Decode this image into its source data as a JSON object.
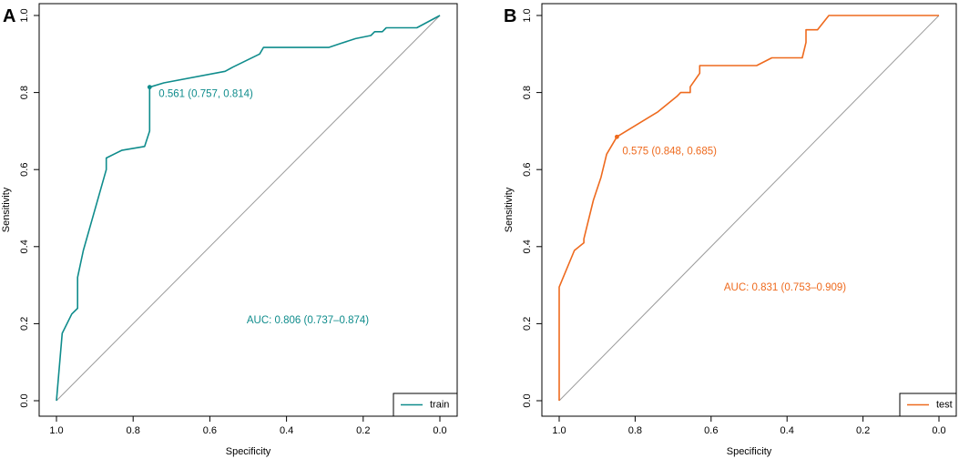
{
  "chart_data": [
    {
      "panel": "A",
      "type": "line",
      "title": "",
      "xlabel": "Specificity",
      "ylabel": "Sensitivity",
      "xlim": [
        1.0,
        0.0
      ],
      "ylim": [
        0.0,
        1.0
      ],
      "x_ticks": [
        "1.0",
        "0.8",
        "0.6",
        "0.4",
        "0.2",
        "0.0"
      ],
      "y_ticks": [
        "0.0",
        "0.2",
        "0.4",
        "0.6",
        "0.8",
        "1.0"
      ],
      "color": "#0f8c8c",
      "series": [
        {
          "name": "train",
          "specificity": [
            1.0,
            0.985,
            0.96,
            0.945,
            0.945,
            0.93,
            0.87,
            0.87,
            0.83,
            0.77,
            0.757,
            0.757,
            0.72,
            0.56,
            0.54,
            0.47,
            0.46,
            0.29,
            0.26,
            0.22,
            0.18,
            0.17,
            0.15,
            0.14,
            0.06,
            0.0
          ],
          "sensitivity": [
            0.0,
            0.175,
            0.225,
            0.24,
            0.32,
            0.39,
            0.6,
            0.63,
            0.65,
            0.66,
            0.7,
            0.814,
            0.825,
            0.855,
            0.866,
            0.9,
            0.917,
            0.917,
            0.927,
            0.94,
            0.948,
            0.958,
            0.958,
            0.968,
            0.968,
            1.0
          ]
        }
      ],
      "threshold_point": {
        "specificity": 0.757,
        "sensitivity": 0.814,
        "label": "0.561 (0.757, 0.814)"
      },
      "auc_text": "AUC: 0.806 (0.737–0.874)",
      "legend": "bottom-right"
    },
    {
      "panel": "B",
      "type": "line",
      "title": "",
      "xlabel": "Specificity",
      "ylabel": "Sensitivity",
      "xlim": [
        1.0,
        0.0
      ],
      "ylim": [
        0.0,
        1.0
      ],
      "x_ticks": [
        "1.0",
        "0.8",
        "0.6",
        "0.4",
        "0.2",
        "0.0"
      ],
      "y_ticks": [
        "0.0",
        "0.2",
        "0.4",
        "0.6",
        "0.8",
        "1.0"
      ],
      "color": "#ee6a1e",
      "series": [
        {
          "name": "test",
          "specificity": [
            1.0,
            1.0,
            0.96,
            0.935,
            0.935,
            0.91,
            0.89,
            0.875,
            0.848,
            0.79,
            0.74,
            0.69,
            0.68,
            0.655,
            0.655,
            0.63,
            0.63,
            0.48,
            0.44,
            0.36,
            0.35,
            0.35,
            0.32,
            0.29,
            0.29,
            0.0
          ],
          "sensitivity": [
            0.0,
            0.295,
            0.39,
            0.41,
            0.42,
            0.52,
            0.58,
            0.64,
            0.685,
            0.72,
            0.75,
            0.79,
            0.8,
            0.8,
            0.815,
            0.85,
            0.87,
            0.87,
            0.89,
            0.89,
            0.93,
            0.963,
            0.963,
            1.0,
            1.0,
            1.0
          ]
        }
      ],
      "threshold_point": {
        "specificity": 0.848,
        "sensitivity": 0.685,
        "label": "0.575 (0.848, 0.685)"
      },
      "auc_text": "AUC: 0.831 (0.753–0.909)",
      "legend": "bottom-right"
    }
  ]
}
